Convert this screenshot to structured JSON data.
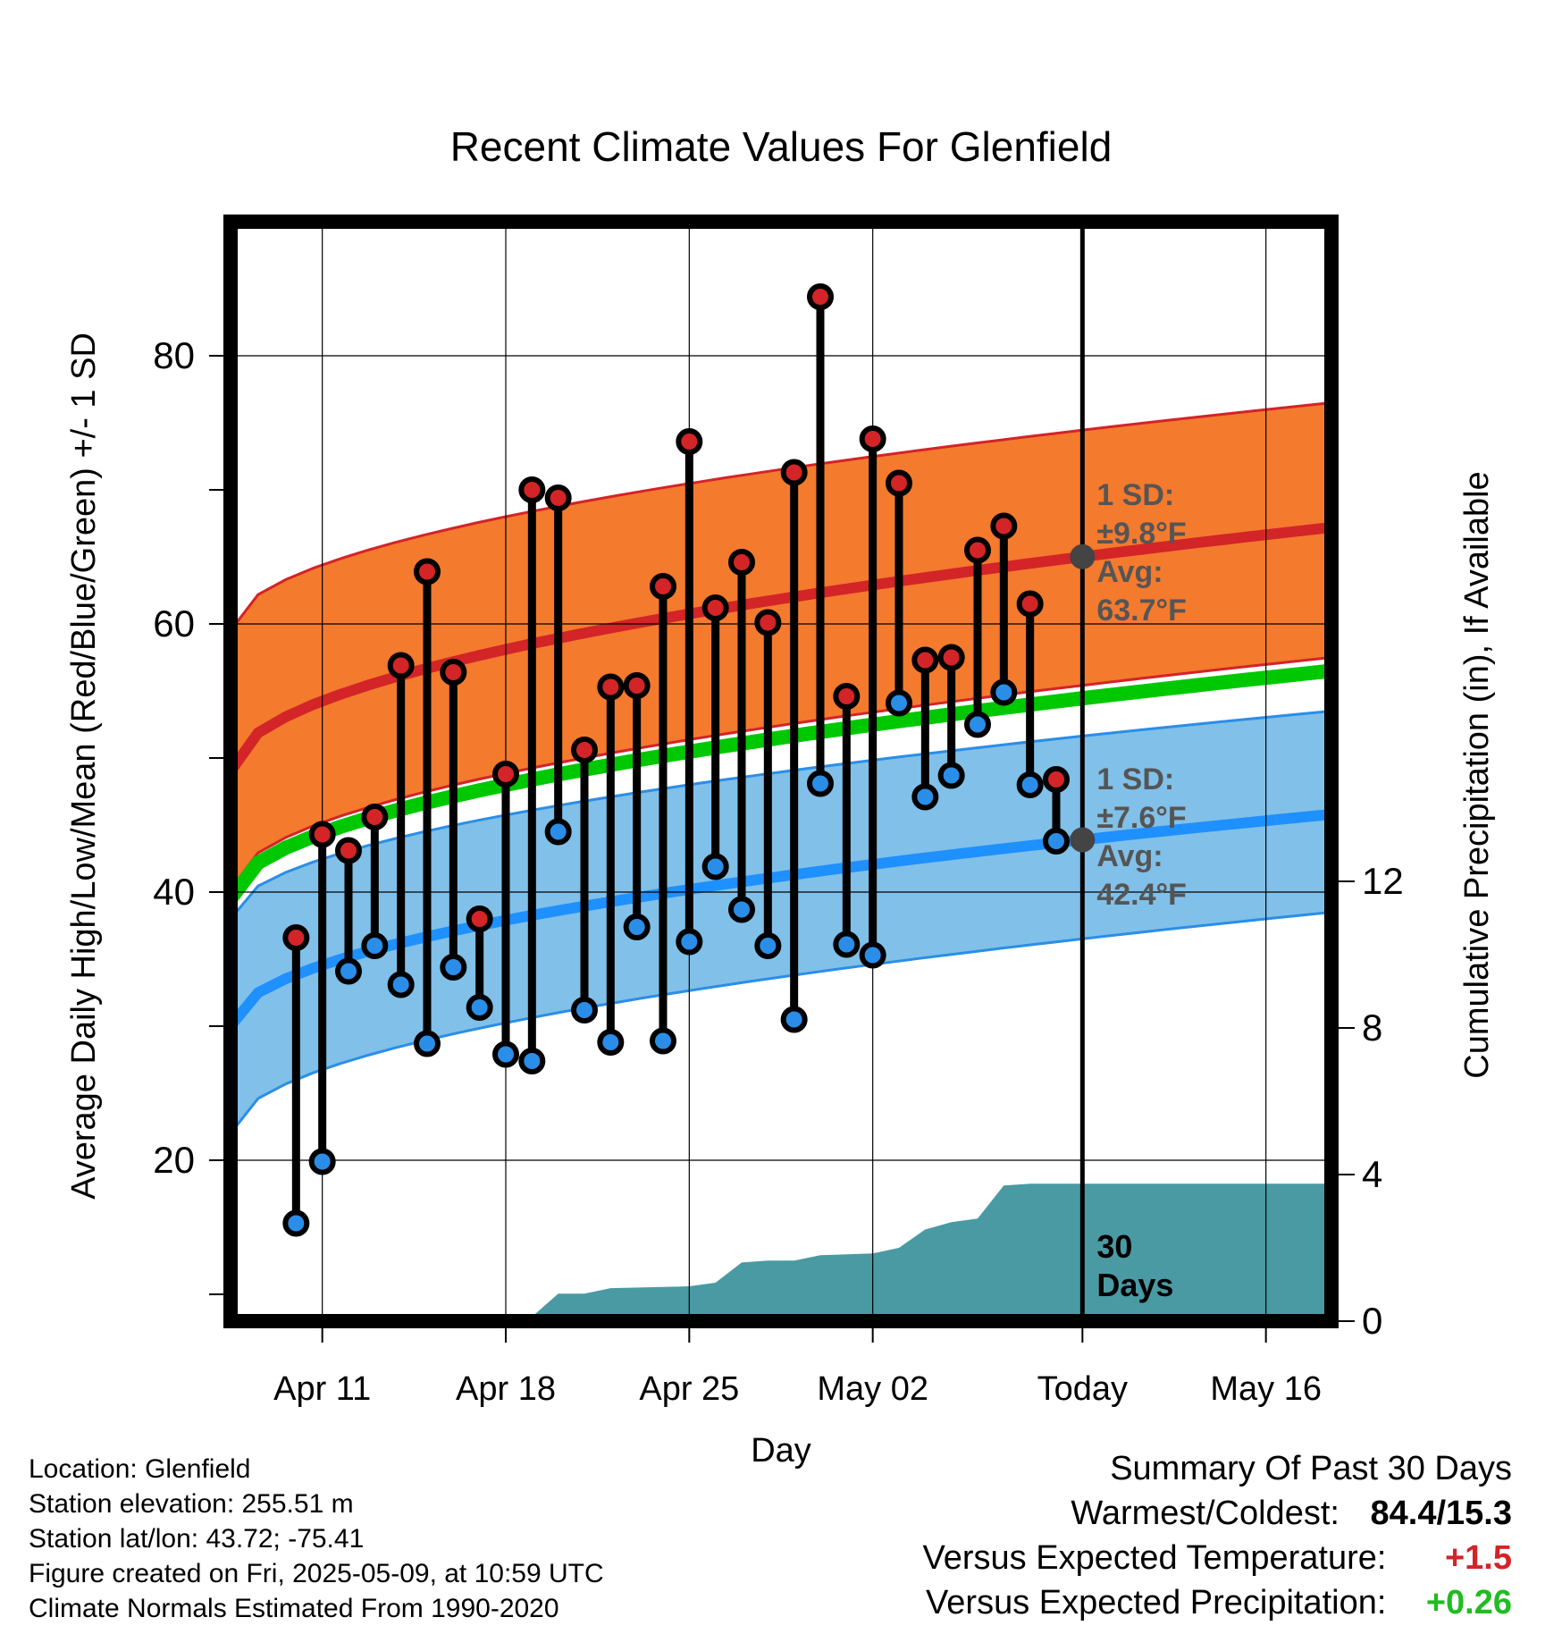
{
  "chart_data": {
    "type": "line",
    "title": "Recent Climate Values For Glenfield",
    "xlabel": "Day",
    "ylabel": "Average Daily High/Low/Mean (Red/Blue/Green) +/- 1 SD",
    "y2label": "Cumulative Precipitation (in), If Available",
    "ylim": [
      8,
      90
    ],
    "y2lim": [
      0,
      30
    ],
    "x_tick_labels": [
      "Apr 11",
      "Apr 18",
      "Apr 25",
      "May 02",
      "Today",
      "May 16"
    ],
    "y_ticks": [
      20,
      40,
      60,
      80
    ],
    "y2_ticks": [
      0,
      4,
      8,
      12
    ],
    "today_label": "Today",
    "annotations": {
      "high_sd_line1": "1 SD:",
      "high_sd_line2": "±9.8°F",
      "high_avg_line1": "Avg:",
      "high_avg_line2": "63.7°F",
      "low_sd_line1": "1 SD:",
      "low_sd_line2": "±7.6°F",
      "low_avg_line1": "Avg:",
      "low_avg_line2": "42.4°F",
      "days_line1": "30",
      "days_line2": "Days"
    },
    "normals": {
      "high_avg": {
        "start": 49.0,
        "end": 67.2
      },
      "high_upper": {
        "start": 59.5,
        "end": 76.5
      },
      "high_lower": {
        "start": 40.2,
        "end": 57.5
      },
      "mean_avg": {
        "start": 39.5,
        "end": 56.5
      },
      "low_avg": {
        "start": 30.0,
        "end": 45.8
      },
      "low_upper": {
        "start": 38.0,
        "end": 53.5
      },
      "low_lower": {
        "start": 22.0,
        "end": 38.5
      }
    },
    "observed": [
      {
        "day": -30,
        "high": 36.6,
        "low": 15.3
      },
      {
        "day": -29,
        "high": 44.3,
        "low": 19.9
      },
      {
        "day": -28,
        "high": 43.1,
        "low": 34.1
      },
      {
        "day": -27,
        "high": 45.6,
        "low": 36.0
      },
      {
        "day": -26,
        "high": 56.9,
        "low": 33.1
      },
      {
        "day": -25,
        "high": 63.9,
        "low": 28.7
      },
      {
        "day": -24,
        "high": 56.4,
        "low": 34.4
      },
      {
        "day": -23,
        "high": 38.0,
        "low": 31.4
      },
      {
        "day": -22,
        "high": 48.8,
        "low": 27.9
      },
      {
        "day": -21,
        "high": 70.0,
        "low": 27.4
      },
      {
        "day": -20,
        "high": 69.4,
        "low": 44.5
      },
      {
        "day": -19,
        "high": 50.6,
        "low": 31.2
      },
      {
        "day": -18,
        "high": 55.3,
        "low": 28.8
      },
      {
        "day": -17,
        "high": 55.4,
        "low": 37.4
      },
      {
        "day": -16,
        "high": 62.8,
        "low": 28.9
      },
      {
        "day": -15,
        "high": 73.6,
        "low": 36.3
      },
      {
        "day": -14,
        "high": 61.2,
        "low": 41.9
      },
      {
        "day": -13,
        "high": 64.6,
        "low": 38.7
      },
      {
        "day": -12,
        "high": 60.1,
        "low": 36.0
      },
      {
        "day": -11,
        "high": 71.3,
        "low": 30.5
      },
      {
        "day": -10,
        "high": 84.4,
        "low": 48.1
      },
      {
        "day": -9,
        "high": 54.6,
        "low": 36.1
      },
      {
        "day": -8,
        "high": 73.8,
        "low": 35.3
      },
      {
        "day": -7,
        "high": 70.5,
        "low": 54.1
      },
      {
        "day": -6,
        "high": 57.3,
        "low": 47.1
      },
      {
        "day": -5,
        "high": 57.5,
        "low": 48.7
      },
      {
        "day": -4,
        "high": 65.5,
        "low": 52.5
      },
      {
        "day": -3,
        "high": 67.3,
        "low": 54.9
      },
      {
        "day": -2,
        "high": 61.5,
        "low": 48.0
      },
      {
        "day": -1,
        "high": 48.4,
        "low": 43.8
      }
    ],
    "precip_cumulative": [
      {
        "day": -30,
        "value": 0.0
      },
      {
        "day": -27,
        "value": 0.02
      },
      {
        "day": -25,
        "value": 0.05
      },
      {
        "day": -24,
        "value": 0.12
      },
      {
        "day": -21,
        "value": 0.12
      },
      {
        "day": -20,
        "value": 0.75
      },
      {
        "day": -19,
        "value": 0.75
      },
      {
        "day": -18,
        "value": 0.9
      },
      {
        "day": -15,
        "value": 0.95
      },
      {
        "day": -14,
        "value": 1.05
      },
      {
        "day": -13,
        "value": 1.6
      },
      {
        "day": -12,
        "value": 1.65
      },
      {
        "day": -11,
        "value": 1.65
      },
      {
        "day": -10,
        "value": 1.8
      },
      {
        "day": -8,
        "value": 1.85
      },
      {
        "day": -7,
        "value": 2.0
      },
      {
        "day": -6,
        "value": 2.5
      },
      {
        "day": -5,
        "value": 2.7
      },
      {
        "day": -4,
        "value": 2.8
      },
      {
        "day": -3,
        "value": 3.7
      },
      {
        "day": -2,
        "value": 3.75
      },
      {
        "day": 9.5,
        "value": 3.75
      }
    ],
    "colors": {
      "high_band": "#f47a2e",
      "high_line": "#d32428",
      "low_band": "#81c0e8",
      "low_line": "#1e90ff",
      "low_band_edge": "#2a8ee8",
      "mean_line": "#00c800",
      "precip_fill": "#4a9aa4",
      "high_dot": "#d32428",
      "low_dot": "#2a8ee8",
      "avg_marker": "#444444",
      "annotation_text": "#555555"
    }
  },
  "footer": {
    "location": "Location: Glenfield",
    "elevation": "Station elevation: 255.51 m",
    "latlon": "Station lat/lon: 43.72; -75.41",
    "created": "Figure created on Fri, 2025-05-09, at 10:59 UTC",
    "normals": "Climate Normals Estimated From 1990-2020"
  },
  "summary": {
    "title": "Summary Of Past 30 Days",
    "warm_cold_label": "Warmest/Coldest:",
    "warm_cold_value": "84.4/15.3",
    "temp_label": "Versus Expected Temperature:",
    "temp_value": "+1.5",
    "precip_label": "Versus Expected Precipitation:",
    "precip_value": "+0.26",
    "temp_color": "#d32428",
    "precip_color": "#22bb22"
  }
}
